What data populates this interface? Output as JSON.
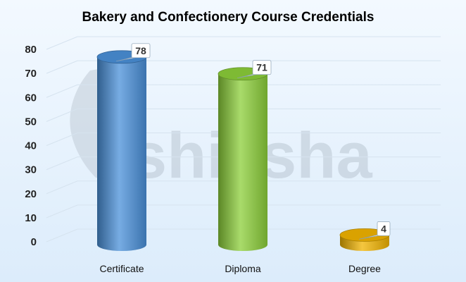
{
  "watermark": {
    "text": "shiksha"
  },
  "chart_data": {
    "type": "bar",
    "style": "3d-cylinder",
    "title": "Bakery and Confectionery Course Credentials",
    "xlabel": "",
    "ylabel": "",
    "categories": [
      "Certificate",
      "Diploma",
      "Degree"
    ],
    "values": [
      78,
      71,
      4
    ],
    "data_labels": [
      "78",
      "71",
      "4"
    ],
    "colors": [
      "#4a90d9",
      "#8ccf3a",
      "#f2b400"
    ],
    "ylim": [
      0,
      80
    ],
    "yticks": [
      0,
      10,
      20,
      30,
      40,
      50,
      60,
      70,
      80
    ],
    "grid": true,
    "legend": "none"
  }
}
